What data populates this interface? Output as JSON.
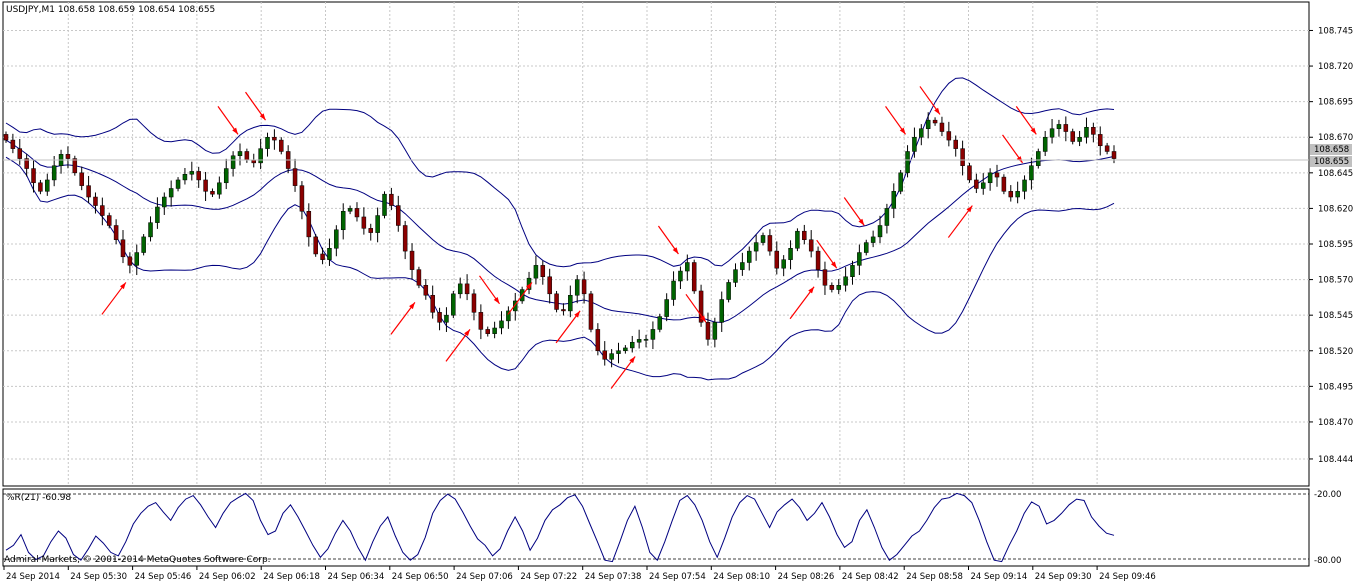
{
  "symbol_header": "USDJPY,M1  108.658 108.659 108.654 108.655",
  "price_labels": [
    "108.658",
    "108.655"
  ],
  "indicator_header": "%R(21) -60.98",
  "indicator_levels": [
    "-20.00",
    "-80.00"
  ],
  "copyright": "Admiral Markets, © 2001-2014 MetaQuotes Software Corp.",
  "colors": {
    "bull_candle": "#006400",
    "bear_candle": "#8b0000",
    "bands": "#000080",
    "arrows": "#ff0000",
    "grid": "#c8c8c8",
    "wpr_line": "#000080"
  },
  "chart_data": [
    {
      "type": "candlestick",
      "title": "USDJPY,M1",
      "series": [
        {
          "name": "Bollinger Bands"
        }
      ],
      "ylim": [
        108.425,
        108.765
      ],
      "y_ticks": [
        "108.745",
        "108.720",
        "108.695",
        "108.670",
        "108.645",
        "108.620",
        "108.595",
        "108.570",
        "108.545",
        "108.520",
        "108.495",
        "108.470",
        "108.444"
      ],
      "x_ticks": [
        "24 Sep 2014",
        "24 Sep 05:30",
        "24 Sep 05:46",
        "24 Sep 06:02",
        "24 Sep 06:18",
        "24 Sep 06:34",
        "24 Sep 06:50",
        "24 Sep 07:06",
        "24 Sep 07:22",
        "24 Sep 07:38",
        "24 Sep 07:54",
        "24 Sep 08:10",
        "24 Sep 08:26",
        "24 Sep 08:42",
        "24 Sep 08:58",
        "24 Sep 09:14",
        "24 Sep 09:30",
        "24 Sep 09:46"
      ],
      "close_path": [
        108.668,
        108.662,
        108.655,
        108.648,
        108.638,
        108.632,
        108.64,
        108.65,
        108.658,
        108.655,
        108.645,
        108.636,
        108.628,
        108.622,
        108.615,
        108.608,
        108.598,
        108.586,
        108.58,
        108.589,
        108.6,
        108.61,
        108.621,
        108.628,
        108.634,
        108.64,
        108.644,
        108.646,
        108.64,
        108.632,
        108.63,
        108.638,
        108.648,
        108.657,
        108.66,
        108.654,
        108.652,
        108.662,
        108.67,
        108.668,
        108.66,
        108.648,
        108.636,
        108.618,
        108.6,
        108.588,
        108.584,
        108.592,
        108.605,
        108.618,
        108.62,
        108.614,
        108.606,
        108.603,
        108.615,
        108.63,
        108.622,
        108.608,
        108.59,
        108.577,
        108.566,
        108.559,
        108.547,
        108.54,
        108.545,
        108.56,
        108.567,
        108.56,
        108.547,
        108.535,
        108.532,
        108.536,
        108.541,
        108.548,
        108.555,
        108.563,
        108.571,
        108.58,
        108.572,
        108.56,
        108.549,
        108.548,
        108.559,
        108.57,
        108.56,
        108.535,
        108.52,
        108.514,
        108.518,
        108.52,
        108.522,
        108.526,
        108.528,
        108.528,
        108.535,
        108.544,
        108.556,
        108.569,
        108.576,
        108.582,
        108.562,
        108.54,
        108.528,
        108.54,
        108.556,
        108.568,
        108.577,
        108.582,
        108.59,
        108.596,
        108.601,
        108.59,
        108.578,
        108.584,
        108.592,
        108.604,
        108.598,
        108.59,
        108.577,
        108.566,
        108.563,
        108.566,
        108.572,
        108.58,
        108.589,
        108.596,
        108.6,
        108.608,
        108.62,
        108.632,
        108.645,
        108.66,
        108.67,
        108.676,
        108.682,
        108.68,
        108.674,
        108.668,
        108.662,
        108.65,
        108.64,
        108.634,
        108.638,
        108.645,
        108.642,
        108.632,
        108.628,
        108.632,
        108.64,
        108.65,
        108.66,
        108.67,
        108.676,
        108.679,
        108.674,
        108.667,
        108.67,
        108.677,
        108.672,
        108.664,
        108.66,
        108.655
      ],
      "wpr": {
        "name": "%R(21)",
        "last_value": -60.98,
        "ylim": [
          -100,
          0
        ],
        "levels": [
          -20,
          -80
        ],
        "values": [
          -82,
          -75,
          -60,
          -85,
          -95,
          -90,
          -70,
          -55,
          -65,
          -88,
          -96,
          -80,
          -62,
          -72,
          -85,
          -90,
          -70,
          -45,
          -30,
          -20,
          -15,
          -28,
          -40,
          -22,
          -10,
          -5,
          -18,
          -35,
          -50,
          -30,
          -15,
          -8,
          -2,
          -12,
          -40,
          -60,
          -55,
          -30,
          -18,
          -35,
          -55,
          -75,
          -92,
          -80,
          -58,
          -40,
          -55,
          -78,
          -96,
          -70,
          -48,
          -35,
          -62,
          -85,
          -96,
          -88,
          -64,
          -30,
          -12,
          -3,
          -10,
          -28,
          -48,
          -66,
          -75,
          -90,
          -80,
          -55,
          -35,
          -55,
          -82,
          -65,
          -40,
          -25,
          -18,
          -8,
          -4,
          -20,
          -45,
          -70,
          -96,
          -98,
          -70,
          -40,
          -20,
          -50,
          -85,
          -96,
          -70,
          -40,
          -12,
          -5,
          -18,
          -40,
          -70,
          -92,
          -65,
          -35,
          -15,
          -5,
          -10,
          -30,
          -50,
          -28,
          -18,
          -10,
          -22,
          -40,
          -30,
          -15,
          -35,
          -60,
          -78,
          -70,
          -40,
          -25,
          -50,
          -78,
          -96,
          -88,
          -75,
          -62,
          -55,
          -40,
          -22,
          -10,
          -8,
          -2,
          -5,
          -15,
          -40,
          -70,
          -96,
          -98,
          -75,
          -55,
          -30,
          -14,
          -20,
          -45,
          -40,
          -30,
          -18,
          -10,
          -12,
          -35,
          -48,
          -58,
          -61
        ]
      }
    }
  ]
}
